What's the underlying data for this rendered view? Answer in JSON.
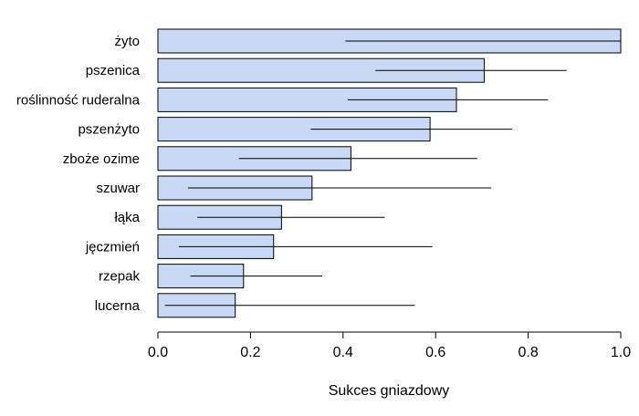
{
  "chart_data": {
    "type": "bar",
    "orientation": "horizontal",
    "xlabel": "Sukces gniazdowy",
    "ylabel": "",
    "title": "",
    "xlim": [
      0,
      1
    ],
    "xticks": [
      "0.0",
      "0.2",
      "0.4",
      "0.6",
      "0.8",
      "1.0"
    ],
    "grid": false,
    "legend": "none",
    "colors": {
      "bar_fill": "#c9d9f5",
      "bar_stroke": "#000000",
      "error_bar": "#000000"
    },
    "categories": [
      "żyto",
      "pszenica",
      "roślinność ruderalna",
      "pszenżyto",
      "zboże ozime",
      "szuwar",
      "łąka",
      "jęczmień",
      "rzepak",
      "lucerna"
    ],
    "values": [
      1.0,
      0.705,
      0.645,
      0.588,
      0.417,
      0.333,
      0.267,
      0.25,
      0.185,
      0.167
    ],
    "ci_low": [
      0.405,
      0.47,
      0.41,
      0.33,
      0.175,
      0.065,
      0.085,
      0.045,
      0.07,
      0.015
    ],
    "ci_high": [
      1.0,
      0.883,
      0.843,
      0.765,
      0.69,
      0.72,
      0.49,
      0.593,
      0.355,
      0.555
    ]
  }
}
